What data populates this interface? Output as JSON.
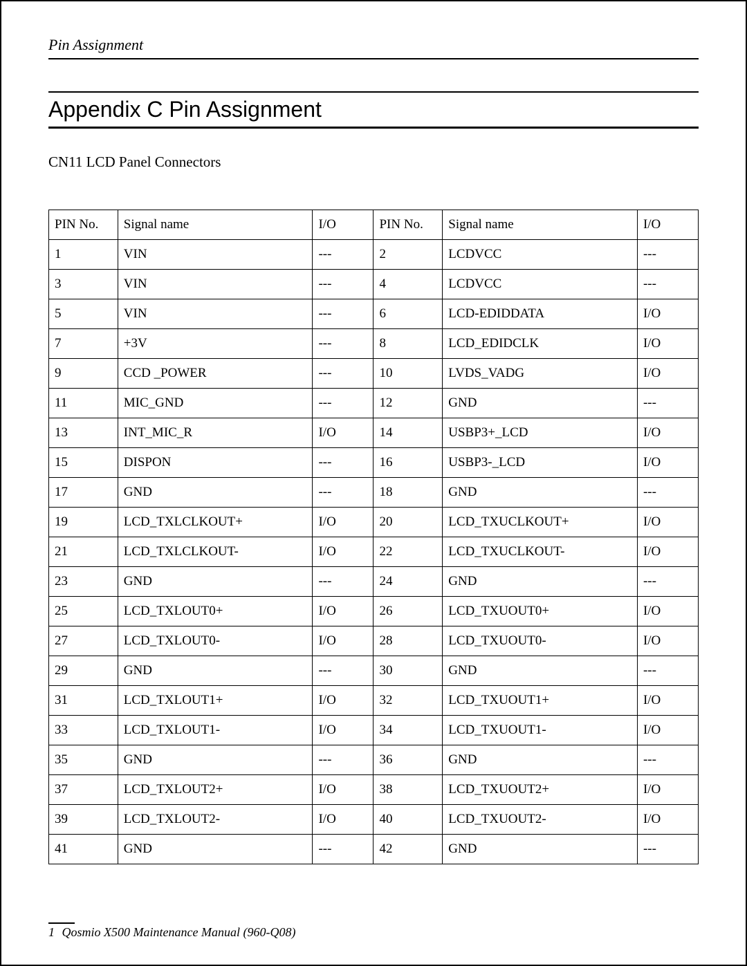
{
  "header": {
    "running_title": "Pin Assignment"
  },
  "title": "Appendix C    Pin Assignment",
  "subheading": "CN11 LCD Panel Connectors",
  "table": {
    "columns": [
      "PIN No.",
      "Signal name",
      "I/O",
      "PIN No.",
      "Signal name",
      "I/O"
    ],
    "rows": [
      [
        "1",
        "VIN",
        "---",
        "2",
        "LCDVCC",
        "---"
      ],
      [
        "3",
        "VIN",
        "---",
        "4",
        "LCDVCC",
        "---"
      ],
      [
        "5",
        "VIN",
        "---",
        "6",
        "LCD-EDIDDATA",
        "I/O"
      ],
      [
        "7",
        "+3V",
        "---",
        "8",
        "LCD_EDIDCLK",
        "I/O"
      ],
      [
        "9",
        "CCD _POWER",
        "---",
        "10",
        "LVDS_VADG",
        "I/O"
      ],
      [
        "11",
        "MIC_GND",
        "---",
        "12",
        "GND",
        "---"
      ],
      [
        "13",
        "INT_MIC_R",
        "I/O",
        "14",
        "USBP3+_LCD",
        "I/O"
      ],
      [
        "15",
        "DISPON",
        "---",
        "16",
        "USBP3-_LCD",
        "I/O"
      ],
      [
        "17",
        "GND",
        "---",
        "18",
        "GND",
        "---"
      ],
      [
        "19",
        "LCD_TXLCLKOUT+",
        "I/O",
        "20",
        "LCD_TXUCLKOUT+",
        "I/O"
      ],
      [
        "21",
        "LCD_TXLCLKOUT-",
        "I/O",
        "22",
        "LCD_TXUCLKOUT-",
        "I/O"
      ],
      [
        "23",
        "GND",
        "---",
        "24",
        "GND",
        "---"
      ],
      [
        "25",
        "LCD_TXLOUT0+",
        "I/O",
        "26",
        "LCD_TXUOUT0+",
        "I/O"
      ],
      [
        "27",
        "LCD_TXLOUT0-",
        "I/O",
        "28",
        "LCD_TXUOUT0-",
        "I/O"
      ],
      [
        "29",
        "GND",
        "---",
        "30",
        "GND",
        "---"
      ],
      [
        "31",
        "LCD_TXLOUT1+",
        "I/O",
        "32",
        "LCD_TXUOUT1+",
        "I/O"
      ],
      [
        "33",
        "LCD_TXLOUT1-",
        "I/O",
        "34",
        "LCD_TXUOUT1-",
        "I/O"
      ],
      [
        "35",
        "GND",
        "---",
        "36",
        "GND",
        "---"
      ],
      [
        "37",
        "LCD_TXLOUT2+",
        "I/O",
        "38",
        "LCD_TXUOUT2+",
        "I/O"
      ],
      [
        "39",
        "LCD_TXLOUT2-",
        "I/O",
        "40",
        "LCD_TXUOUT2-",
        "I/O"
      ],
      [
        "41",
        "GND",
        "---",
        "42",
        "GND",
        "---"
      ]
    ]
  },
  "footer": {
    "page_number": "1",
    "text": "Qosmio X500 Maintenance Manual (960-Q08)"
  }
}
